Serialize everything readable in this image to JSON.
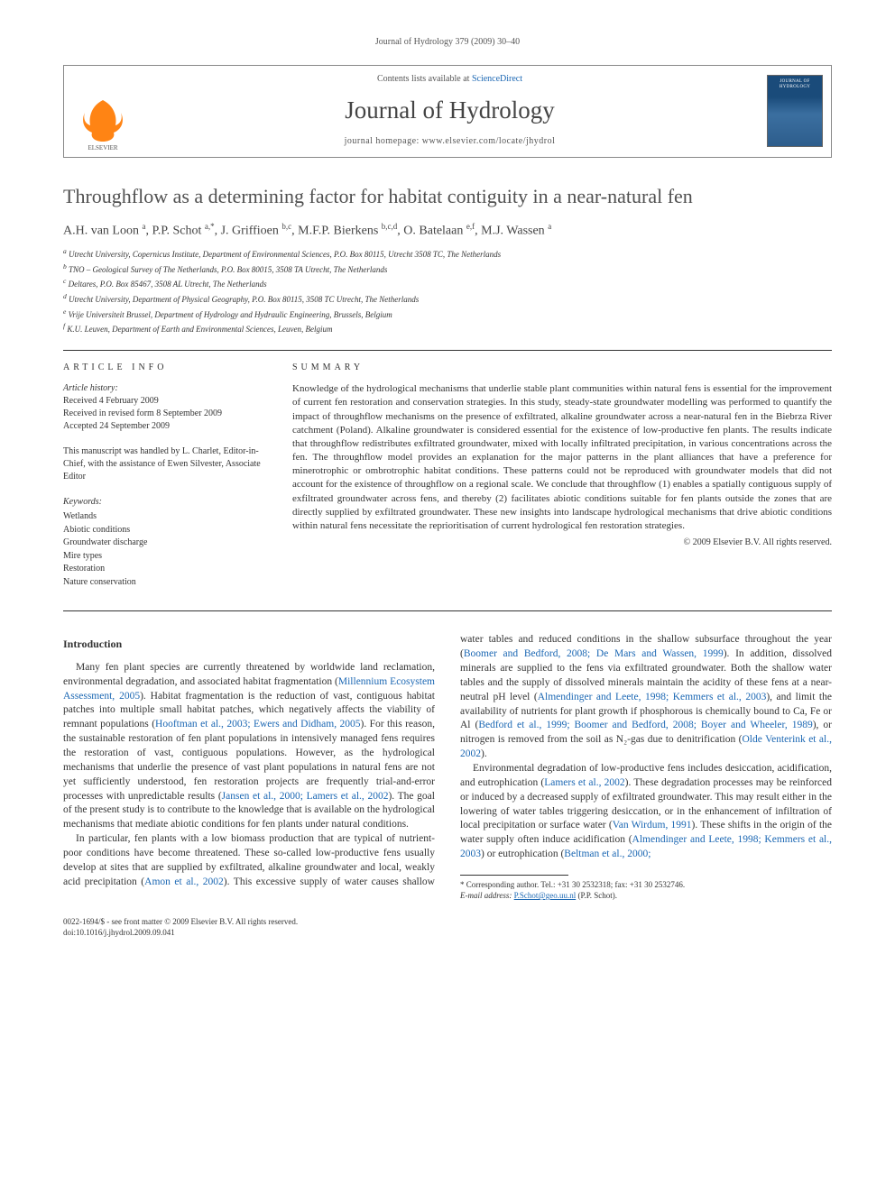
{
  "running_head": "Journal of Hydrology 379 (2009) 30–40",
  "masthead": {
    "contents_prefix": "Contents lists available at ",
    "contents_link": "ScienceDirect",
    "journal_name": "Journal of Hydrology",
    "homepage_prefix": "journal homepage: ",
    "homepage_url": "www.elsevier.com/locate/jhydrol",
    "cover_label": "JOURNAL OF HYDROLOGY",
    "elsevier_orange": "#ff7a00",
    "cover_bg_top": "#1a4b7a"
  },
  "title": "Throughflow as a determining factor for habitat contiguity in a near-natural fen",
  "authors_html": "A.H. van Loon <sup>a</sup>, P.P. Schot <sup>a,*</sup>, J. Griffioen <sup>b,c</sup>, M.F.P. Bierkens <sup>b,c,d</sup>, O. Batelaan <sup>e,f</sup>, M.J. Wassen <sup>a</sup>",
  "affiliations": [
    "a Utrecht University, Copernicus Institute, Department of Environmental Sciences, P.O. Box 80115, Utrecht 3508 TC, The Netherlands",
    "b TNO – Geological Survey of The Netherlands, P.O. Box 80015, 3508 TA Utrecht, The Netherlands",
    "c Deltares, P.O. Box 85467, 3508 AL Utrecht, The Netherlands",
    "d Utrecht University, Department of Physical Geography, P.O. Box 80115, 3508 TC Utrecht, The Netherlands",
    "e Vrije Universiteit Brussel, Department of Hydrology and Hydraulic Engineering, Brussels, Belgium",
    "f K.U. Leuven, Department of Earth and Environmental Sciences, Leuven, Belgium"
  ],
  "article_info": {
    "heading": "article info",
    "history_label": "Article history:",
    "history": [
      "Received 4 February 2009",
      "Received in revised form 8 September 2009",
      "Accepted 24 September 2009"
    ],
    "editor_note": "This manuscript was handled by L. Charlet, Editor-in-Chief, with the assistance of Ewen Silvester, Associate Editor",
    "keywords_label": "Keywords:",
    "keywords": [
      "Wetlands",
      "Abiotic conditions",
      "Groundwater discharge",
      "Mire types",
      "Restoration",
      "Nature conservation"
    ]
  },
  "summary": {
    "heading": "summary",
    "text": "Knowledge of the hydrological mechanisms that underlie stable plant communities within natural fens is essential for the improvement of current fen restoration and conservation strategies. In this study, steady-state groundwater modelling was performed to quantify the impact of throughflow mechanisms on the presence of exfiltrated, alkaline groundwater across a near-natural fen in the Biebrza River catchment (Poland). Alkaline groundwater is considered essential for the existence of low-productive fen plants. The results indicate that throughflow redistributes exfiltrated groundwater, mixed with locally infiltrated precipitation, in various concentrations across the fen. The throughflow model provides an explanation for the major patterns in the plant alliances that have a preference for minerotrophic or ombrotrophic habitat conditions. These patterns could not be reproduced with groundwater models that did not account for the existence of throughflow on a regional scale. We conclude that throughflow (1) enables a spatially contiguous supply of exfiltrated groundwater across fens, and thereby (2) facilitates abiotic conditions suitable for fen plants outside the zones that are directly supplied by exfiltrated groundwater. These new insights into landscape hydrological mechanisms that drive abiotic conditions within natural fens necessitate the reprioritisation of current hydrological fen restoration strategies.",
    "copyright": "© 2009 Elsevier B.V. All rights reserved."
  },
  "intro": {
    "heading": "Introduction",
    "p1_a": "Many fen plant species are currently threatened by worldwide land reclamation, environmental degradation, and associated habitat fragmentation (",
    "p1_c1": "Millennium Ecosystem Assessment, 2005",
    "p1_b": "). Habitat fragmentation is the reduction of vast, contiguous habitat patches into multiple small habitat patches, which negatively affects the viability of remnant populations (",
    "p1_c2": "Hooftman et al., 2003; Ewers and Didham, 2005",
    "p1_c": "). For this reason, the sustainable restoration of fen plant populations in intensively managed fens requires the restoration of vast, contiguous populations. However, as the hydrological mechanisms that underlie the presence of vast plant populations in natural fens are not yet sufficiently understood, fen restoration projects are frequently trial-and-error processes with unpredictable results (",
    "p1_c3": "Jansen et al., 2000; Lamers et al., 2002",
    "p1_d": "). The goal of the present study is to contribute to the knowledge that is available on the hydrological mechanisms that mediate abiotic conditions for fen plants under natural conditions.",
    "p2_a": "In particular, fen plants with a low biomass production that are typical of nutrient-poor conditions have become threatened. These ",
    "p2_b": "so-called low-productive fens usually develop at sites that are supplied by exfiltrated, alkaline groundwater and local, weakly acid precipitation (",
    "p2_c1": "Amon et al., 2002",
    "p2_c": "). This excessive supply of water causes shallow water tables and reduced conditions in the shallow subsurface throughout the year (",
    "p2_c2": "Boomer and Bedford, 2008; De Mars and Wassen, 1999",
    "p2_d": "). In addition, dissolved minerals are supplied to the fens via exfiltrated groundwater. Both the shallow water tables and the supply of dissolved minerals maintain the acidity of these fens at a near-neutral pH level (",
    "p2_c3": "Almendinger and Leete, 1998; Kemmers et al., 2003",
    "p2_e": "), and limit the availability of nutrients for plant growth if phosphorous is chemically bound to Ca, Fe or Al (",
    "p2_c4": "Bedford et al., 1999; Boomer and Bedford, 2008; Boyer and Wheeler, 1989",
    "p2_f": "), or nitrogen is removed from the soil as N₂-gas due to denitrification (",
    "p2_c5": "Olde Venterink et al., 2002",
    "p2_g": ").",
    "p3_a": "Environmental degradation of low-productive fens includes desiccation, acidification, and eutrophication (",
    "p3_c1": "Lamers et al., 2002",
    "p3_b": "). These degradation processes may be reinforced or induced by a decreased supply of exfiltrated groundwater. This may result either in the lowering of water tables triggering desiccation, or in the enhancement of infiltration of local precipitation or surface water (",
    "p3_c2": "Van Wirdum, 1991",
    "p3_c": "). These shifts in the origin of the water supply often induce acidification (",
    "p3_c3": "Almendinger and Leete, 1998; Kemmers et al., 2003",
    "p3_d": ") or eutrophication (",
    "p3_c4": "Beltman et al., 2000;",
    "p3_e": ""
  },
  "footnote": {
    "corr": "* Corresponding author. Tel.: +31 30 2532318; fax: +31 30 2532746.",
    "email_label": "E-mail address: ",
    "email": "P.Schot@geo.uu.nl",
    "email_suffix": " (P.P. Schot)."
  },
  "bottom": {
    "line1": "0022-1694/$ - see front matter © 2009 Elsevier B.V. All rights reserved.",
    "line2": "doi:10.1016/j.jhydrol.2009.09.041"
  },
  "colors": {
    "link": "#1b67b3",
    "text": "#333333",
    "heading": "#505050"
  }
}
